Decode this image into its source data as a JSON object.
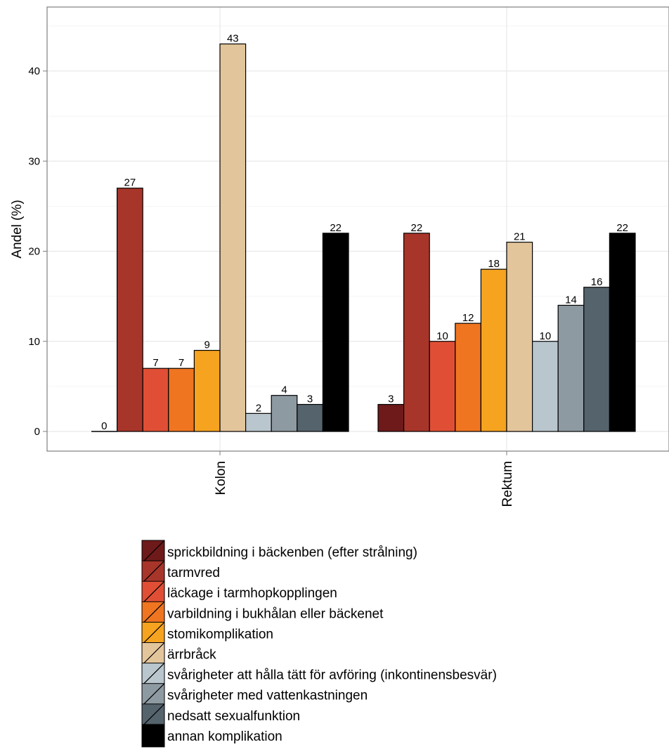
{
  "chart_data": {
    "type": "bar",
    "title": "",
    "xlabel": "",
    "ylabel": "Andel (%)",
    "ylim": [
      -2.2,
      47.5
    ],
    "yticks": [
      0,
      10,
      20,
      30,
      40
    ],
    "grid": true,
    "legend_position": "bottom",
    "categories": [
      "Kolon",
      "Rektum"
    ],
    "series": [
      {
        "name": "sprickbildning i bäckenben (efter strålning)",
        "color": "#6e1a1a",
        "values": [
          0,
          3
        ]
      },
      {
        "name": "tarmvred",
        "color": "#a8352a",
        "values": [
          27,
          22
        ]
      },
      {
        "name": "läckage i tarmhopkopplingen",
        "color": "#e04f35",
        "values": [
          7,
          10
        ]
      },
      {
        "name": "varbildning i bukhålan eller bäckenet",
        "color": "#ef7520",
        "values": [
          7,
          12
        ]
      },
      {
        "name": "stomikomplikation",
        "color": "#f6a320",
        "values": [
          9,
          18
        ]
      },
      {
        "name": "ärrbråck",
        "color": "#e3c59c",
        "values": [
          43,
          21
        ]
      },
      {
        "name": "svårigheter att hålla tätt för avföring (inkontinensbesvär)",
        "color": "#b9c6ce",
        "values": [
          2,
          10
        ]
      },
      {
        "name": "svårigheter med vattenkastningen",
        "color": "#8e9aa2",
        "values": [
          4,
          14
        ]
      },
      {
        "name": "nedsatt sexualfunktion",
        "color": "#55636d",
        "values": [
          3,
          16
        ]
      },
      {
        "name": "annan komplikation",
        "color": "#000000",
        "values": [
          22,
          22
        ]
      }
    ]
  }
}
